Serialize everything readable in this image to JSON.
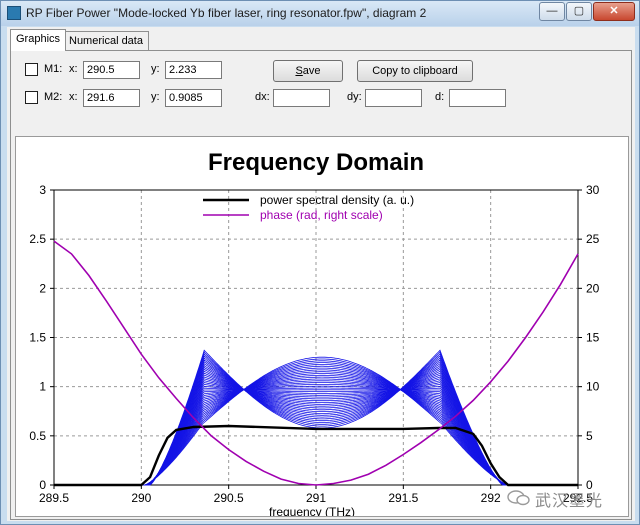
{
  "window": {
    "title": "RP Fiber Power \"Mode-locked Yb fiber laser, ring resonator.fpw\", diagram 2",
    "minimize": "—",
    "maximize": "▢",
    "close": "✕"
  },
  "tabs": [
    {
      "label": "Graphics"
    },
    {
      "label": "Numerical data"
    }
  ],
  "markers": {
    "m1": {
      "label": "M1:",
      "x_label": "x:",
      "x_value": "290.5",
      "y_label": "y:",
      "y_value": "2.233"
    },
    "m2": {
      "label": "M2:",
      "x_label": "x:",
      "x_value": "291.6",
      "y_label": "y:",
      "y_value": "0.9085"
    },
    "dx_label": "dx:",
    "dy_label": "dy:",
    "d_label": "d:",
    "dx_value": "",
    "dy_value": "",
    "d_value": ""
  },
  "buttons": {
    "save": "Save",
    "save_underline": "S",
    "save_rest": "ave",
    "copy": "Copy to clipboard"
  },
  "chart_data": {
    "type": "line",
    "title": "Frequency Domain",
    "xlabel": "frequency (THz)",
    "ylabel": "",
    "xlim": [
      289.5,
      292.5
    ],
    "ylim": [
      0,
      3
    ],
    "y2lim": [
      0,
      30
    ],
    "x_ticks": [
      "289.5",
      "290",
      "290.5",
      "291",
      "291.5",
      "292",
      "292.5"
    ],
    "y_ticks": [
      "0",
      "0.5",
      "1",
      "1.5",
      "2",
      "2.5",
      "3"
    ],
    "y2_ticks": [
      "0",
      "5",
      "10",
      "15",
      "20",
      "25",
      "30"
    ],
    "grid": true,
    "legend_position": "top-center",
    "series": [
      {
        "name": "power spectral density (a. u.)",
        "color": "#000000",
        "x": [
          289.5,
          290.0,
          290.05,
          290.1,
          290.15,
          290.2,
          290.3,
          290.5,
          291.0,
          291.5,
          291.7,
          291.8,
          291.9,
          291.95,
          292.0,
          292.05,
          292.1,
          292.5
        ],
        "y": [
          0.0,
          0.0,
          0.08,
          0.3,
          0.48,
          0.56,
          0.59,
          0.6,
          0.57,
          0.57,
          0.58,
          0.58,
          0.52,
          0.4,
          0.22,
          0.08,
          0.0,
          0.0
        ]
      },
      {
        "name": "phase (rad, right scale)",
        "color": "#a000b0",
        "x": [
          289.5,
          289.6,
          289.7,
          289.8,
          289.9,
          290.0,
          290.1,
          290.2,
          290.3,
          290.4,
          290.5,
          290.6,
          290.7,
          290.8,
          290.9,
          291.0,
          291.1,
          291.2,
          291.3,
          291.4,
          291.5,
          291.6,
          291.7,
          291.8,
          291.9,
          292.0,
          292.1,
          292.2,
          292.3,
          292.4,
          292.5
        ],
        "y": [
          24.8,
          23.5,
          21.3,
          18.7,
          16.0,
          13.3,
          10.9,
          8.8,
          6.8,
          5.0,
          3.6,
          2.4,
          1.4,
          0.6,
          0.15,
          0.0,
          0.15,
          0.5,
          1.1,
          2.0,
          3.1,
          4.3,
          5.6,
          7.0,
          8.6,
          10.5,
          12.6,
          15.0,
          17.6,
          20.4,
          23.5
        ]
      }
    ],
    "family": {
      "color": "#1414e6",
      "description_count": 40,
      "edge_low_start": 290.0,
      "edge_low_top": 290.3,
      "edge_high_top": 291.75,
      "edge_high_end": 292.05,
      "peak_max": 1.37,
      "center_max": 1.3,
      "center_min": 0.55
    }
  },
  "watermark": {
    "text": "武汉墨光"
  }
}
